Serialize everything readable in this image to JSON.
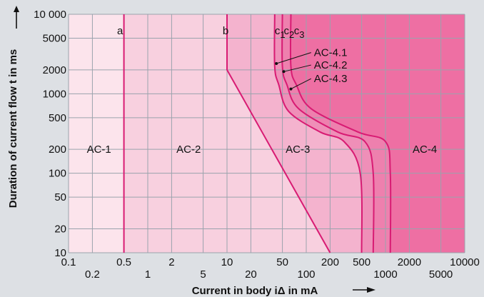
{
  "chart_data": {
    "type": "area",
    "title": "",
    "xlabel": "Current in body iΔ in mA",
    "ylabel": "Duration of current flow t in ms",
    "x_scale": "log",
    "y_scale": "log",
    "xlim": [
      0.1,
      10000
    ],
    "ylim": [
      10,
      10000
    ],
    "x_ticks_top": [
      "0.1",
      "0.5",
      "2",
      "10",
      "50",
      "200",
      "500",
      "2000",
      "10000"
    ],
    "x_ticks_top_values": [
      0.1,
      0.5,
      2,
      10,
      50,
      200,
      500,
      2000,
      10000
    ],
    "x_ticks_bottom": [
      "0.2",
      "1",
      "5",
      "20",
      "100",
      "1000",
      "5000"
    ],
    "x_ticks_bottom_values": [
      0.2,
      1,
      5,
      20,
      100,
      1000,
      5000
    ],
    "y_ticks": [
      "10",
      "20",
      "50",
      "100",
      "200",
      "500",
      "1000",
      "2000",
      "5000",
      "10000"
    ],
    "y_ticks_display": [
      "10",
      "20",
      "50",
      "100",
      "200",
      "500",
      "1000",
      "2000",
      "5000",
      "10 000"
    ],
    "y_tick_values": [
      10,
      20,
      50,
      100,
      200,
      500,
      1000,
      2000,
      5000,
      10000
    ],
    "grid": true,
    "zones": [
      {
        "name": "AC-1",
        "label_at": [
          0.17,
          200
        ],
        "color": "#fce4ec"
      },
      {
        "name": "AC-2",
        "label_at": [
          2.3,
          200
        ],
        "color": "#f8d0df"
      },
      {
        "name": "AC-3",
        "label_at": [
          55,
          200
        ],
        "color": "#f4b3ce"
      },
      {
        "name": "AC-4",
        "label_at": [
          2200,
          200
        ],
        "color": "#ee6fa3"
      }
    ],
    "zone4_bands": [
      "#ef8fb8",
      "#ee80ae",
      "#ee6fa3"
    ],
    "curves": [
      {
        "name": "a",
        "points": [
          [
            0.5,
            10
          ],
          [
            0.5,
            10000
          ]
        ]
      },
      {
        "name": "b",
        "points": [
          [
            10,
            10000
          ],
          [
            10,
            2000
          ],
          [
            200,
            10
          ]
        ]
      },
      {
        "name": "c1",
        "points": [
          [
            40,
            10000
          ],
          [
            40,
            2200
          ],
          [
            45,
            1300
          ],
          [
            60,
            600
          ],
          [
            150,
            330
          ],
          [
            300,
            250
          ],
          [
            480,
            100
          ],
          [
            500,
            10
          ]
        ]
      },
      {
        "name": "c2",
        "points": [
          [
            50,
            10000
          ],
          [
            50,
            2200
          ],
          [
            57,
            1300
          ],
          [
            80,
            650
          ],
          [
            250,
            330
          ],
          [
            550,
            250
          ],
          [
            700,
            100
          ],
          [
            700,
            10
          ]
        ]
      },
      {
        "name": "c3",
        "points": [
          [
            64,
            10000
          ],
          [
            64,
            2200
          ],
          [
            75,
            1300
          ],
          [
            115,
            650
          ],
          [
            450,
            330
          ],
          [
            1000,
            250
          ],
          [
            1150,
            100
          ],
          [
            1150,
            10
          ]
        ]
      }
    ],
    "curve_labels": [
      {
        "text": "a",
        "at": [
          0.41,
          5600
        ]
      },
      {
        "text": "b",
        "at": [
          8.8,
          5600
        ]
      },
      {
        "text": "c",
        "sub": "1",
        "at": [
          40,
          5600
        ]
      },
      {
        "text": "c",
        "sub": "2",
        "at": [
          52,
          5600
        ]
      },
      {
        "text": "c",
        "sub": "3",
        "at": [
          70,
          5600
        ]
      }
    ],
    "annotations": [
      {
        "text": "AC-4.1",
        "at": [
          125,
          3300
        ],
        "arrow_to": [
          42,
          2400
        ]
      },
      {
        "text": "AC-4.2",
        "at": [
          125,
          2300
        ],
        "arrow_to": [
          52,
          1900
        ]
      },
      {
        "text": "AC-4.3",
        "at": [
          125,
          1550
        ],
        "arrow_to": [
          64,
          1150
        ]
      }
    ],
    "colors": {
      "background": "#dde0e4",
      "grid": "#9aa3ad",
      "curve": "#d81b73",
      "axis_text": "#111111"
    }
  }
}
